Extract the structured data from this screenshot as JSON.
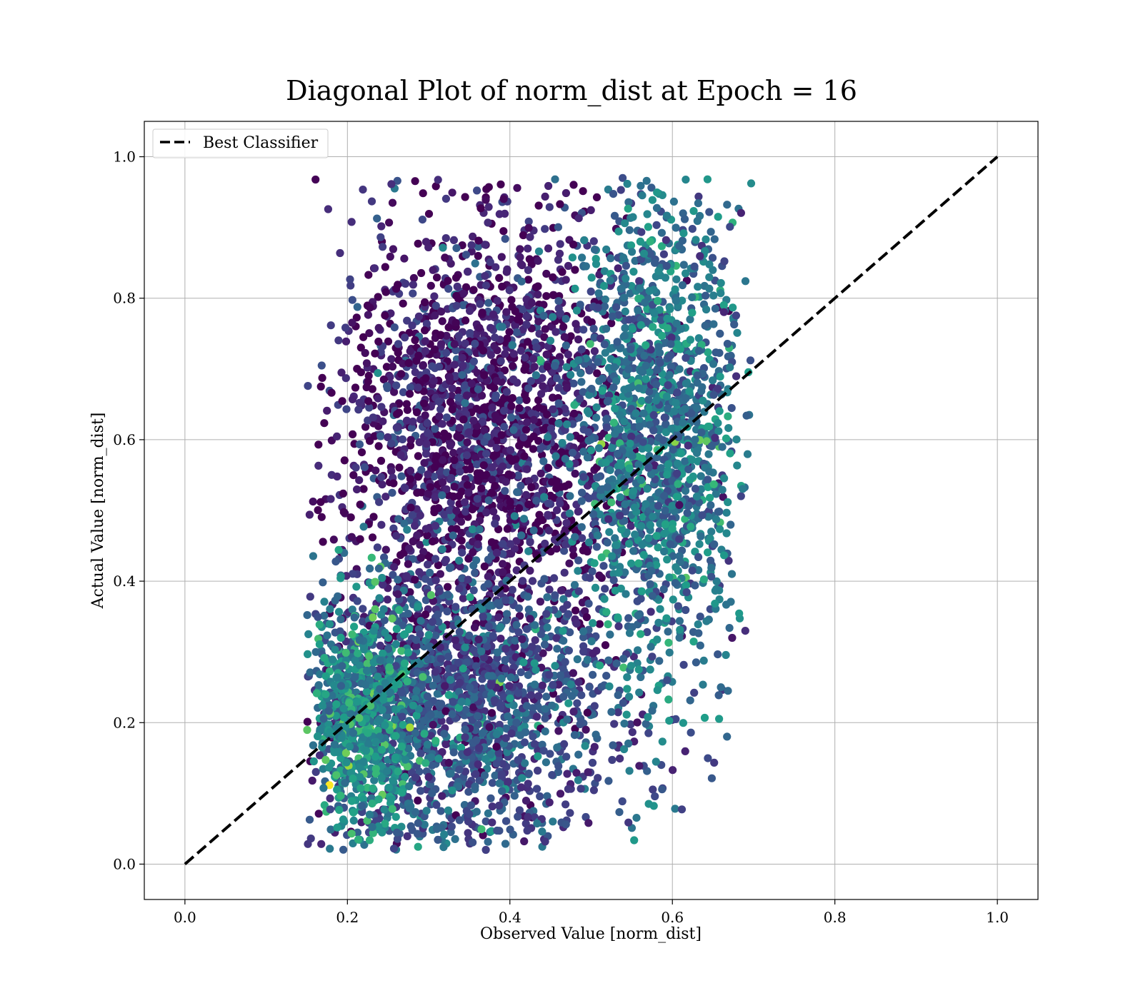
{
  "chart_data": {
    "type": "scatter",
    "title": "Diagonal Plot of norm_dist at Epoch = 16",
    "xlabel": "Observed Value [norm_dist]",
    "ylabel": "Actual Value [norm_dist]",
    "xlim": [
      -0.05,
      1.05
    ],
    "ylim": [
      -0.05,
      1.05
    ],
    "xticks": [
      "0.0",
      "0.2",
      "0.4",
      "0.6",
      "0.8",
      "1.0"
    ],
    "yticks": [
      "0.0",
      "0.2",
      "0.4",
      "0.6",
      "0.8",
      "1.0"
    ],
    "grid": true,
    "legend_position": "top-left",
    "colormap": "viridis",
    "series": [
      {
        "name": "Best Classifier",
        "kind": "line",
        "style": "dashed",
        "color": "#000000",
        "x": [
          0.0,
          1.0
        ],
        "y": [
          0.0,
          1.0
        ]
      },
      {
        "kind": "scatter",
        "colormap": "viridis",
        "point_cloud": {
          "x_range": [
            0.15,
            0.7
          ],
          "y_range": [
            0.02,
            0.97
          ],
          "approx_points": 6000,
          "regions": [
            {
              "x_center": 0.37,
              "y_center": 0.62,
              "x_spread": 0.09,
              "y_spread": 0.16,
              "weight": 0.35,
              "color_level": 0.08
            },
            {
              "x_center": 0.33,
              "y_center": 0.22,
              "x_spread": 0.1,
              "y_spread": 0.1,
              "weight": 0.3,
              "color_level": 0.25
            },
            {
              "x_center": 0.58,
              "y_center": 0.62,
              "x_spread": 0.05,
              "y_spread": 0.17,
              "weight": 0.25,
              "color_level": 0.38
            },
            {
              "x_center": 0.22,
              "y_center": 0.2,
              "x_spread": 0.03,
              "y_spread": 0.09,
              "weight": 0.1,
              "color_level": 0.5
            }
          ]
        }
      }
    ]
  }
}
